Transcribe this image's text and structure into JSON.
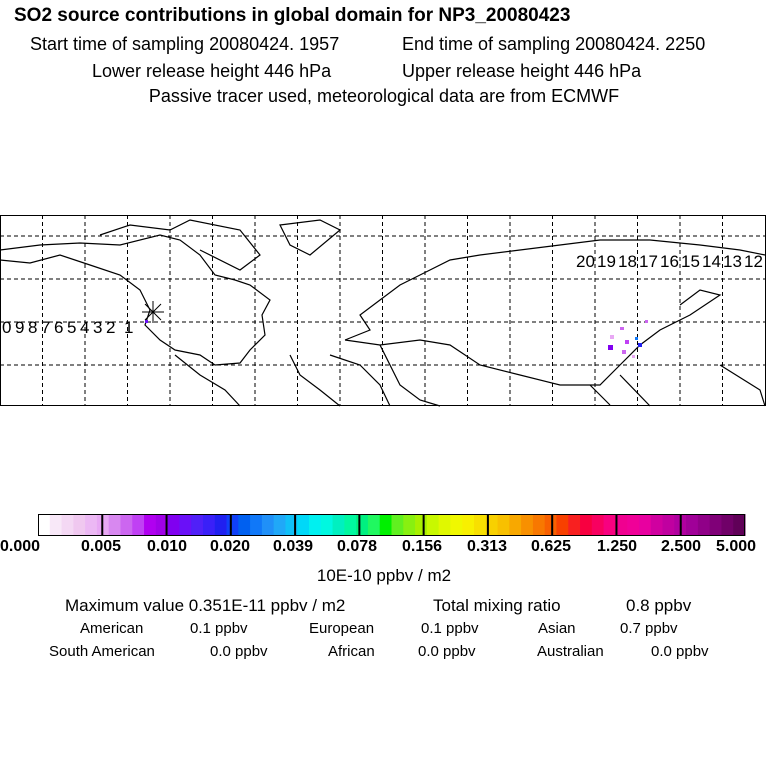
{
  "header": {
    "title": "SO2 source contributions in global domain for NP3_20080423",
    "start": "Start time of sampling 20080424.  1957",
    "end": "End time of sampling 20080424.  2250",
    "lower": "Lower release height  446 hPa",
    "upper": "Upper release height  446 hPa",
    "note": "Passive tracer used, meteorological data are from ECMWF"
  },
  "map": {
    "trajectory_labels": [
      "0",
      "9",
      "8",
      "7",
      "6",
      "5",
      "4",
      "3",
      "2",
      "1",
      "20",
      "19",
      "18",
      "17",
      "16",
      "15",
      "14",
      "13",
      "12"
    ],
    "release_marker": "star-icon"
  },
  "colorbar": {
    "ticks": [
      "0.000",
      "0.005",
      "0.010",
      "0.020",
      "0.039",
      "0.078",
      "0.156",
      "0.313",
      "0.625",
      "1.250",
      "2.500",
      "5.000"
    ],
    "units": "10E-10 ppbv / m2",
    "colors": [
      "#ffffff",
      "#f8e8f8",
      "#f4d8f4",
      "#f0c8f0",
      "#ecb8f4",
      "#e8a8f4",
      "#d888f0",
      "#cc66f0",
      "#c040f4",
      "#b000f0",
      "#a000e8",
      "#8000f0",
      "#6a10f8",
      "#5020f8",
      "#3a20f8",
      "#2020f0",
      "#1040f8",
      "#0060f0",
      "#1078f8",
      "#2090f8",
      "#20a8f8",
      "#10c0f8",
      "#00d8f8",
      "#00f0f0",
      "#00f8e0",
      "#00f0c0",
      "#00f8a0",
      "#00f080",
      "#20f860",
      "#00f000",
      "#60f020",
      "#88f010",
      "#a8f000",
      "#c8f800",
      "#e0f800",
      "#f0f800",
      "#f8f000",
      "#f8e000",
      "#f8d000",
      "#f8c000",
      "#f8a800",
      "#f89000",
      "#f87800",
      "#f86000",
      "#f84000",
      "#f82020",
      "#f80040",
      "#f80060",
      "#f80080",
      "#f00090",
      "#f00098",
      "#e800a0",
      "#d000a0",
      "#c000a0",
      "#b000a0",
      "#a00098",
      "#900088",
      "#800078",
      "#700068",
      "#600058"
    ]
  },
  "stats": {
    "max": "Maximum value  0.351E-11 ppbv / m2",
    "total_label": "Total mixing ratio",
    "total": "0.8 ppbv",
    "american_label": "American",
    "american": "0.1 ppbv",
    "european_label": "European",
    "european": "0.1 ppbv",
    "asian_label": "Asian",
    "asian": "0.7 ppbv",
    "sam_label": "South American",
    "sam": "0.0 ppbv",
    "african_label": "African",
    "african": "0.0 ppbv",
    "aus_label": "Australian",
    "aus": "0.0 ppbv"
  }
}
